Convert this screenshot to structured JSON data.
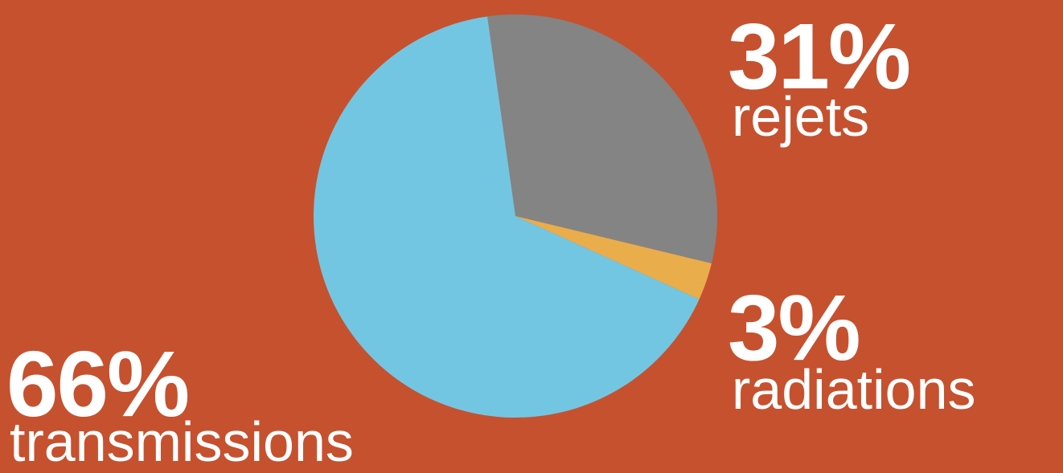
{
  "chart_data": {
    "type": "pie",
    "slices": [
      {
        "name": "rejets",
        "label": "31%",
        "caption": "rejets",
        "value": 31,
        "color": "#848484"
      },
      {
        "name": "radiations",
        "label": "3%",
        "caption": "radiations",
        "value": 3,
        "color": "#EAAD4C"
      },
      {
        "name": "transmissions",
        "label": "66%",
        "caption": "transmissions",
        "value": 66,
        "color": "#73C6E1"
      }
    ],
    "start_angle_deg": -8,
    "direction": "clockwise"
  },
  "colors": {
    "background": "#C6512F",
    "text": "#FFFFFF"
  }
}
